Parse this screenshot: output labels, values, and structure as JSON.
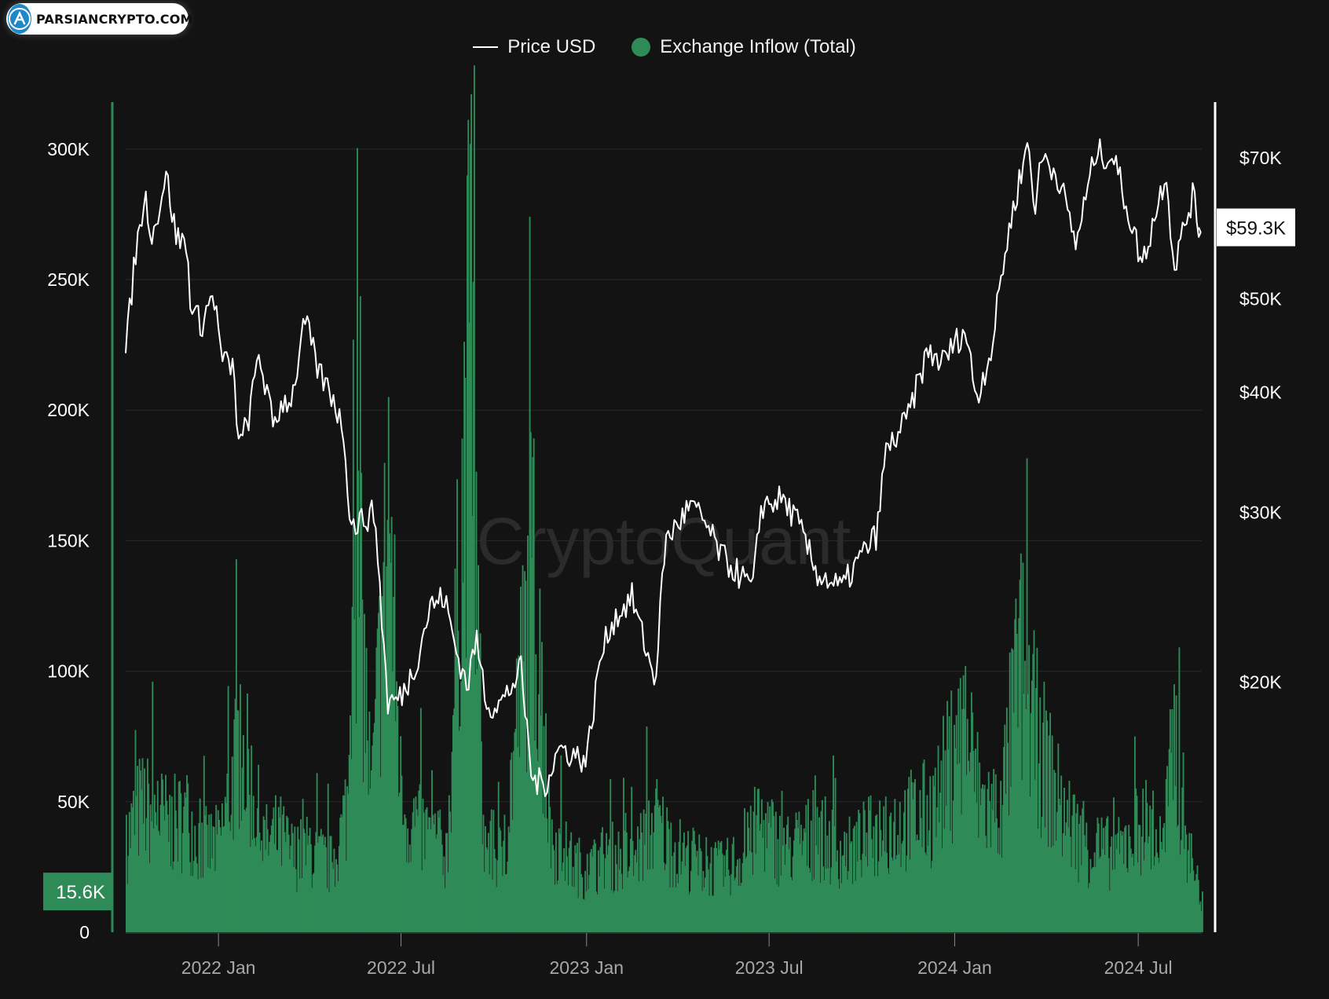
{
  "badge": {
    "text": "PARSIANCRYPTO.COM"
  },
  "watermark": "CryptoQuant",
  "legend": [
    {
      "label": "Price USD",
      "color": "#ffffff",
      "marker": "line"
    },
    {
      "label": "Exchange Inflow (Total)",
      "color": "#2e8b57",
      "marker": "dot"
    }
  ],
  "chart_data": {
    "type": "bar+line",
    "grid": true,
    "legend_position": "top-center",
    "x_tick_labels": [
      "2022 Jan",
      "2022 Jul",
      "2023 Jan",
      "2023 Jul",
      "2024 Jan",
      "2024 Jul"
    ],
    "x_range": [
      "2021-10-01",
      "2024-09-02"
    ],
    "y_left": {
      "name": "Exchange Inflow (Total)",
      "ticks": [
        0,
        50000,
        100000,
        150000,
        200000,
        250000,
        300000
      ],
      "tick_labels": [
        "0",
        "50K",
        "100K",
        "150K",
        "200K",
        "250K",
        "300K"
      ],
      "range": [
        0,
        318000
      ],
      "current_value": 15600,
      "current_label": "15.6K"
    },
    "y_right": {
      "name": "Price USD",
      "scale": "log",
      "ticks": [
        20000,
        30000,
        40000,
        50000,
        70000
      ],
      "tick_labels": [
        "$20K",
        "$30K",
        "$40K",
        "$50K",
        "$70K"
      ],
      "range": [
        11000,
        80000
      ],
      "current_value": 59300,
      "current_label": "$59.3K"
    },
    "series": [
      {
        "name": "Price USD",
        "type": "line",
        "axis": "right",
        "color": "#ffffff",
        "points": [
          [
            "2021-10-01",
            43800
          ],
          [
            "2021-10-10",
            55000
          ],
          [
            "2021-10-20",
            64000
          ],
          [
            "2021-10-28",
            58000
          ],
          [
            "2021-11-10",
            67500
          ],
          [
            "2021-11-20",
            58000
          ],
          [
            "2021-11-30",
            57000
          ],
          [
            "2021-12-05",
            49000
          ],
          [
            "2021-12-15",
            47000
          ],
          [
            "2021-12-27",
            50800
          ],
          [
            "2022-01-05",
            43000
          ],
          [
            "2022-01-15",
            42500
          ],
          [
            "2022-01-22",
            35000
          ],
          [
            "2022-02-01",
            38000
          ],
          [
            "2022-02-10",
            44000
          ],
          [
            "2022-02-24",
            37000
          ],
          [
            "2022-03-05",
            39000
          ],
          [
            "2022-03-15",
            39500
          ],
          [
            "2022-03-28",
            47500
          ],
          [
            "2022-04-10",
            42000
          ],
          [
            "2022-04-25",
            39500
          ],
          [
            "2022-05-06",
            36000
          ],
          [
            "2022-05-12",
            29000
          ],
          [
            "2022-05-25",
            29500
          ],
          [
            "2022-06-05",
            30000
          ],
          [
            "2022-06-13",
            22500
          ],
          [
            "2022-06-18",
            19000
          ],
          [
            "2022-07-01",
            19300
          ],
          [
            "2022-07-15",
            20800
          ],
          [
            "2022-07-30",
            24000
          ],
          [
            "2022-08-13",
            24500
          ],
          [
            "2022-08-25",
            21500
          ],
          [
            "2022-09-05",
            19800
          ],
          [
            "2022-09-13",
            22200
          ],
          [
            "2022-09-25",
            18900
          ],
          [
            "2022-10-10",
            19100
          ],
          [
            "2022-10-28",
            20600
          ],
          [
            "2022-11-08",
            15800
          ],
          [
            "2022-11-21",
            15700
          ],
          [
            "2022-12-05",
            17100
          ],
          [
            "2022-12-20",
            16800
          ],
          [
            "2023-01-01",
            16600
          ],
          [
            "2023-01-14",
            21000
          ],
          [
            "2023-01-25",
            23000
          ],
          [
            "2023-02-15",
            24500
          ],
          [
            "2023-03-10",
            20000
          ],
          [
            "2023-03-20",
            28000
          ],
          [
            "2023-04-14",
            30500
          ],
          [
            "2023-04-28",
            29300
          ],
          [
            "2023-05-15",
            27000
          ],
          [
            "2023-06-15",
            25000
          ],
          [
            "2023-06-23",
            30500
          ],
          [
            "2023-07-14",
            31000
          ],
          [
            "2023-07-28",
            29500
          ],
          [
            "2023-08-17",
            26000
          ],
          [
            "2023-09-11",
            25000
          ],
          [
            "2023-09-30",
            27000
          ],
          [
            "2023-10-16",
            28500
          ],
          [
            "2023-10-24",
            34500
          ],
          [
            "2023-11-15",
            37500
          ],
          [
            "2023-12-05",
            44000
          ],
          [
            "2023-12-20",
            43000
          ],
          [
            "2024-01-11",
            46500
          ],
          [
            "2024-01-23",
            39500
          ],
          [
            "2024-02-08",
            45000
          ],
          [
            "2024-02-15",
            52000
          ],
          [
            "2024-02-28",
            62000
          ],
          [
            "2024-03-14",
            73000
          ],
          [
            "2024-03-20",
            62000
          ],
          [
            "2024-03-28",
            70500
          ],
          [
            "2024-04-13",
            67000
          ],
          [
            "2024-04-30",
            57000
          ],
          [
            "2024-05-20",
            71000
          ],
          [
            "2024-06-07",
            70000
          ],
          [
            "2024-06-24",
            60000
          ],
          [
            "2024-07-05",
            54300
          ],
          [
            "2024-07-29",
            68000
          ],
          [
            "2024-08-05",
            53800
          ],
          [
            "2024-08-24",
            64000
          ],
          [
            "2024-08-30",
            59300
          ]
        ]
      },
      {
        "name": "Exchange Inflow (Total)",
        "type": "bar",
        "axis": "left",
        "color": "#2e8b57",
        "points": [
          [
            "2021-10-01",
            45000
          ],
          [
            "2021-10-15",
            62000
          ],
          [
            "2021-11-01",
            58000
          ],
          [
            "2021-11-15",
            52000
          ],
          [
            "2021-12-01",
            57000
          ],
          [
            "2021-12-15",
            42000
          ],
          [
            "2022-01-01",
            43000
          ],
          [
            "2022-01-22",
            95000
          ],
          [
            "2022-02-15",
            43000
          ],
          [
            "2022-03-01",
            48000
          ],
          [
            "2022-03-15",
            38000
          ],
          [
            "2022-04-01",
            40000
          ],
          [
            "2022-04-25",
            32000
          ],
          [
            "2022-05-10",
            68000
          ],
          [
            "2022-05-14",
            227000
          ],
          [
            "2022-06-01",
            62000
          ],
          [
            "2022-06-18",
            205000
          ],
          [
            "2022-07-01",
            60000
          ],
          [
            "2022-07-15",
            52000
          ],
          [
            "2022-08-01",
            45000
          ],
          [
            "2022-08-15",
            38000
          ],
          [
            "2022-09-07",
            302000
          ],
          [
            "2022-09-20",
            45000
          ],
          [
            "2022-10-10",
            35000
          ],
          [
            "2022-11-08",
            182000
          ],
          [
            "2022-11-25",
            48000
          ],
          [
            "2022-12-15",
            35000
          ],
          [
            "2023-01-01",
            30000
          ],
          [
            "2023-01-20",
            38000
          ],
          [
            "2023-02-15",
            35000
          ],
          [
            "2023-03-10",
            55000
          ],
          [
            "2023-03-25",
            42000
          ],
          [
            "2023-04-15",
            35000
          ],
          [
            "2023-05-15",
            30000
          ],
          [
            "2023-06-10",
            40000
          ],
          [
            "2023-06-20",
            55000
          ],
          [
            "2023-07-15",
            40000
          ],
          [
            "2023-08-17",
            48000
          ],
          [
            "2023-09-15",
            38000
          ],
          [
            "2023-10-24",
            52000
          ],
          [
            "2023-11-15",
            55000
          ],
          [
            "2023-12-10",
            60000
          ],
          [
            "2024-01-11",
            102000
          ],
          [
            "2024-01-25",
            65000
          ],
          [
            "2024-02-15",
            58000
          ],
          [
            "2024-03-05",
            135000
          ],
          [
            "2024-03-14",
            110000
          ],
          [
            "2024-03-25",
            90000
          ],
          [
            "2024-04-15",
            60000
          ],
          [
            "2024-05-10",
            42000
          ],
          [
            "2024-06-10",
            38000
          ],
          [
            "2024-07-05",
            55000
          ],
          [
            "2024-07-25",
            40000
          ],
          [
            "2024-08-05",
            95000
          ],
          [
            "2024-08-20",
            38000
          ],
          [
            "2024-09-02",
            15600
          ]
        ]
      }
    ]
  }
}
